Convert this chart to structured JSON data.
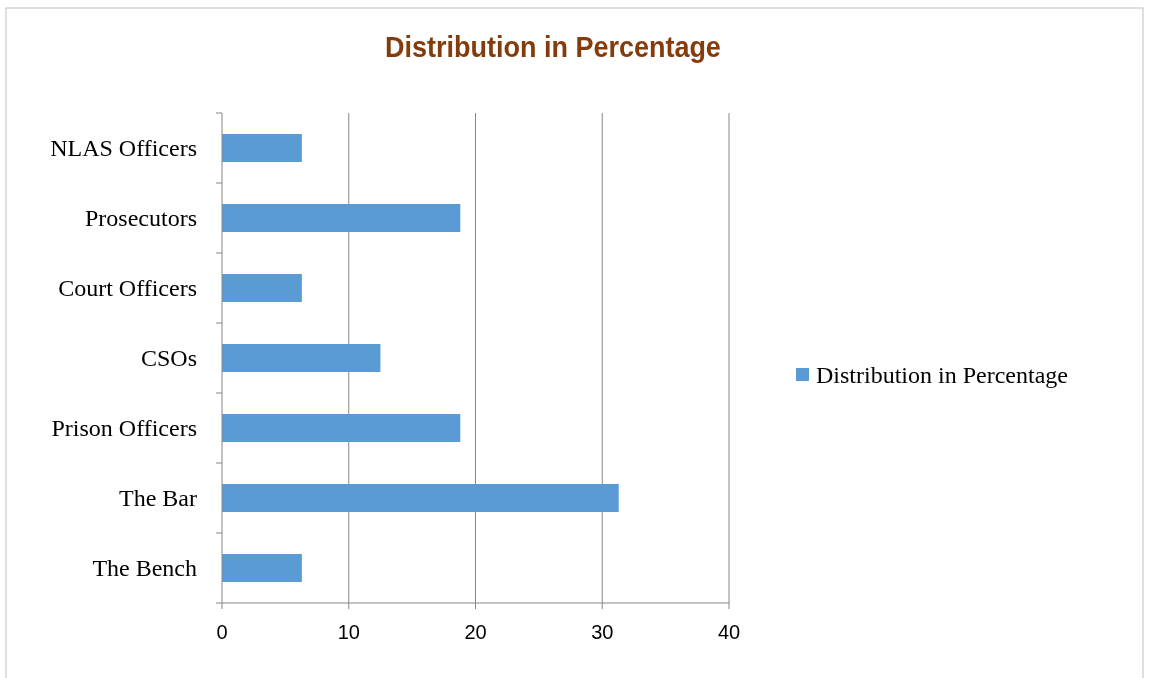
{
  "chart_data": {
    "type": "bar",
    "orientation": "horizontal",
    "title": "Distribution in Percentage",
    "categories": [
      "NLAS Officers",
      "Prosecutors",
      "Court Officers",
      "CSOs",
      "Prison Officers",
      "The Bar",
      "The Bench"
    ],
    "series": [
      {
        "name": "Distribution in Percentage",
        "color": "#5b9bd5",
        "values": [
          6.3,
          18.8,
          6.3,
          12.5,
          18.8,
          31.3,
          6.3
        ]
      }
    ],
    "xlim": [
      0,
      40
    ],
    "xticks": [
      0,
      10,
      20,
      30,
      40
    ],
    "grid": "x",
    "legend": "right"
  }
}
